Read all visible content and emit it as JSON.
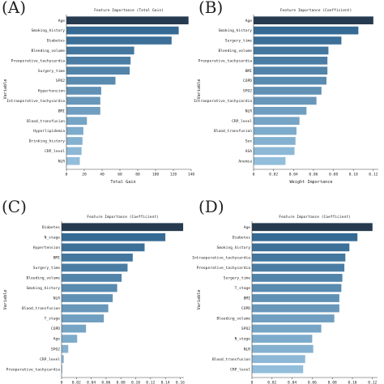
{
  "chart_data": [
    {
      "type": "bar",
      "orientation": "horizontal",
      "panel_label": "(A)",
      "title": "Feature Importance (Total Gain)",
      "xlabel": "Total Gain",
      "ylabel": "Variable",
      "xlim": [
        0,
        140
      ],
      "xticks": [
        "0",
        "20",
        "40",
        "60",
        "80",
        "100",
        "120",
        "140"
      ],
      "xtick_values": [
        0,
        20,
        40,
        60,
        80,
        100,
        120,
        140
      ],
      "categories": [
        "Age",
        "Smoking_history",
        "Diabetes",
        "Bleeding_volume",
        "Preoperative_tachycardia",
        "Surgery_time",
        "SPO2",
        "Hypertension",
        "Intraoperative_tachycardia",
        "BMI",
        "Blood_transfusion",
        "Hyperlipidemia",
        "Drinking_history",
        "CRP_level",
        "NLR"
      ],
      "values": [
        137,
        126,
        118,
        76,
        72,
        71,
        55,
        39,
        38,
        38,
        23,
        19,
        18,
        17,
        15
      ],
      "grid": false,
      "legend": "none"
    },
    {
      "type": "bar",
      "orientation": "horizontal",
      "panel_label": "(B)",
      "title": "Feature Importance (Coefficient)",
      "xlabel": "Weight Importance",
      "ylabel": "Variable",
      "xlim": [
        0,
        0.125
      ],
      "xticks": [
        "0",
        "0.02",
        "0.04",
        "0.06",
        "0.08",
        "0.10",
        "0.12"
      ],
      "xtick_values": [
        0,
        0.02,
        0.04,
        0.06,
        0.08,
        0.1,
        0.12
      ],
      "categories": [
        "Age",
        "Smoking_history",
        "Surgery_time",
        "Bleeding_volume",
        "Preoperative_tachycardia",
        "BMI",
        "COPD",
        "SPO2",
        "Intraoperative_tachycardia",
        "NLR",
        "CRP_level",
        "Blood_transfusion",
        "Sex",
        "ASA",
        "Anemia"
      ],
      "values": [
        0.12,
        0.105,
        0.088,
        0.075,
        0.074,
        0.074,
        0.073,
        0.068,
        0.063,
        0.053,
        0.046,
        0.043,
        0.042,
        0.041,
        0.032
      ],
      "grid": false,
      "legend": "none"
    },
    {
      "type": "bar",
      "orientation": "horizontal",
      "panel_label": "(C)",
      "title": "Feature Importance (Coefficient)",
      "xlabel": "",
      "ylabel": "Variable",
      "xlim": [
        0,
        0.165
      ],
      "xticks": [
        "0",
        "0.02",
        "0.04",
        "0.06",
        "0.08",
        "0.10",
        "0.12",
        "0.14",
        "0.16"
      ],
      "xtick_values": [
        0,
        0.02,
        0.04,
        0.06,
        0.08,
        0.1,
        0.12,
        0.14,
        0.16
      ],
      "categories": [
        "Diabetes",
        "N_stage",
        "Hypertension",
        "BMI",
        "Surgery_time",
        "Bleeding_volume",
        "Smoking_history",
        "NLR",
        "Blood_transfusion",
        "T_stage",
        "COPD",
        "Age",
        "SPO2",
        "CRP_level",
        "Preoperative_tachycardia"
      ],
      "values": [
        0.164,
        0.14,
        0.112,
        0.096,
        0.089,
        0.081,
        0.075,
        0.069,
        0.063,
        0.057,
        0.033,
        0.021,
        0.009,
        0.003,
        0.001
      ],
      "grid": false,
      "legend": "none"
    },
    {
      "type": "bar",
      "orientation": "horizontal",
      "panel_label": "(D)",
      "title": "Feature Importance (Coefficient)",
      "xlabel": "",
      "ylabel": "Variable",
      "xlim": [
        0,
        0.125
      ],
      "xticks": [
        "0",
        "0.02",
        "0.04",
        "0.06",
        "0.08",
        "0.10",
        "0.12"
      ],
      "xtick_values": [
        0,
        0.02,
        0.04,
        0.06,
        0.08,
        0.1,
        0.12
      ],
      "categories": [
        "Age",
        "Diabetes",
        "Smoking_history",
        "Intraoperative_tachycardia",
        "Preoperative_tachycardia",
        "Surgery_time",
        "T_stage",
        "BMI",
        "COPD",
        "Bleeding_volume",
        "SPO2",
        "N_stage",
        "NLR",
        "Blood_transfusion",
        "CRP_level"
      ],
      "values": [
        0.12,
        0.105,
        0.097,
        0.093,
        0.092,
        0.09,
        0.089,
        0.087,
        0.087,
        0.082,
        0.069,
        0.06,
        0.061,
        0.053,
        0.051
      ],
      "grid": false,
      "legend": "none"
    }
  ],
  "colors": {
    "bar_dark": "#263b4f",
    "bar_mid": "#356a94",
    "bar_light": "#93bedb",
    "axis": "#444444",
    "text": "#222222",
    "background": "#ffffff"
  }
}
